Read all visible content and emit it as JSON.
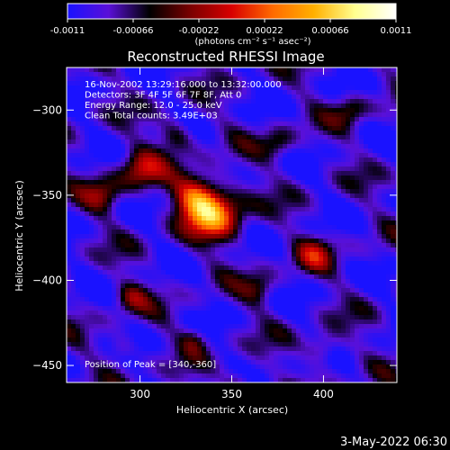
{
  "colorbar": {
    "ticks": [
      "-0.0011",
      "-0.00066",
      "-0.00022",
      "0.00022",
      "0.00066",
      "0.0011"
    ],
    "unit_label": "(photons cm⁻² s⁻¹ asec⁻²)",
    "colormap": [
      "#1a12ff",
      "#5a10d8",
      "#000000",
      "#7a0000",
      "#d80000",
      "#ff6a00",
      "#ffb000",
      "#ffff90",
      "#ffffff"
    ]
  },
  "chart_data": {
    "type": "heatmap",
    "title": "Reconstructed RHESSI Image",
    "xlabel": "Heliocentric X (arcsec)",
    "ylabel": "Heliocentric Y (arcsec)",
    "xlim": [
      260,
      440
    ],
    "ylim": [
      -460,
      -275
    ],
    "x_ticks": [
      "300",
      "350",
      "400"
    ],
    "y_ticks": [
      "-300",
      "-350",
      "-400",
      "-450"
    ],
    "annotations": [
      "16-Nov-2002 13:29:16.000 to 13:32:00.000",
      "Detectors: 3F 4F 5F 6F 7F 8F, Att 0",
      "Energy Range: 12.0 - 25.0 keV",
      "Clean     Total counts: 3.49E+03"
    ],
    "peak_label": "Position of Peak = [340,-360]",
    "peak": [
      340,
      -360
    ]
  },
  "footer": {
    "timestamp": "3-May-2022 06:30"
  }
}
